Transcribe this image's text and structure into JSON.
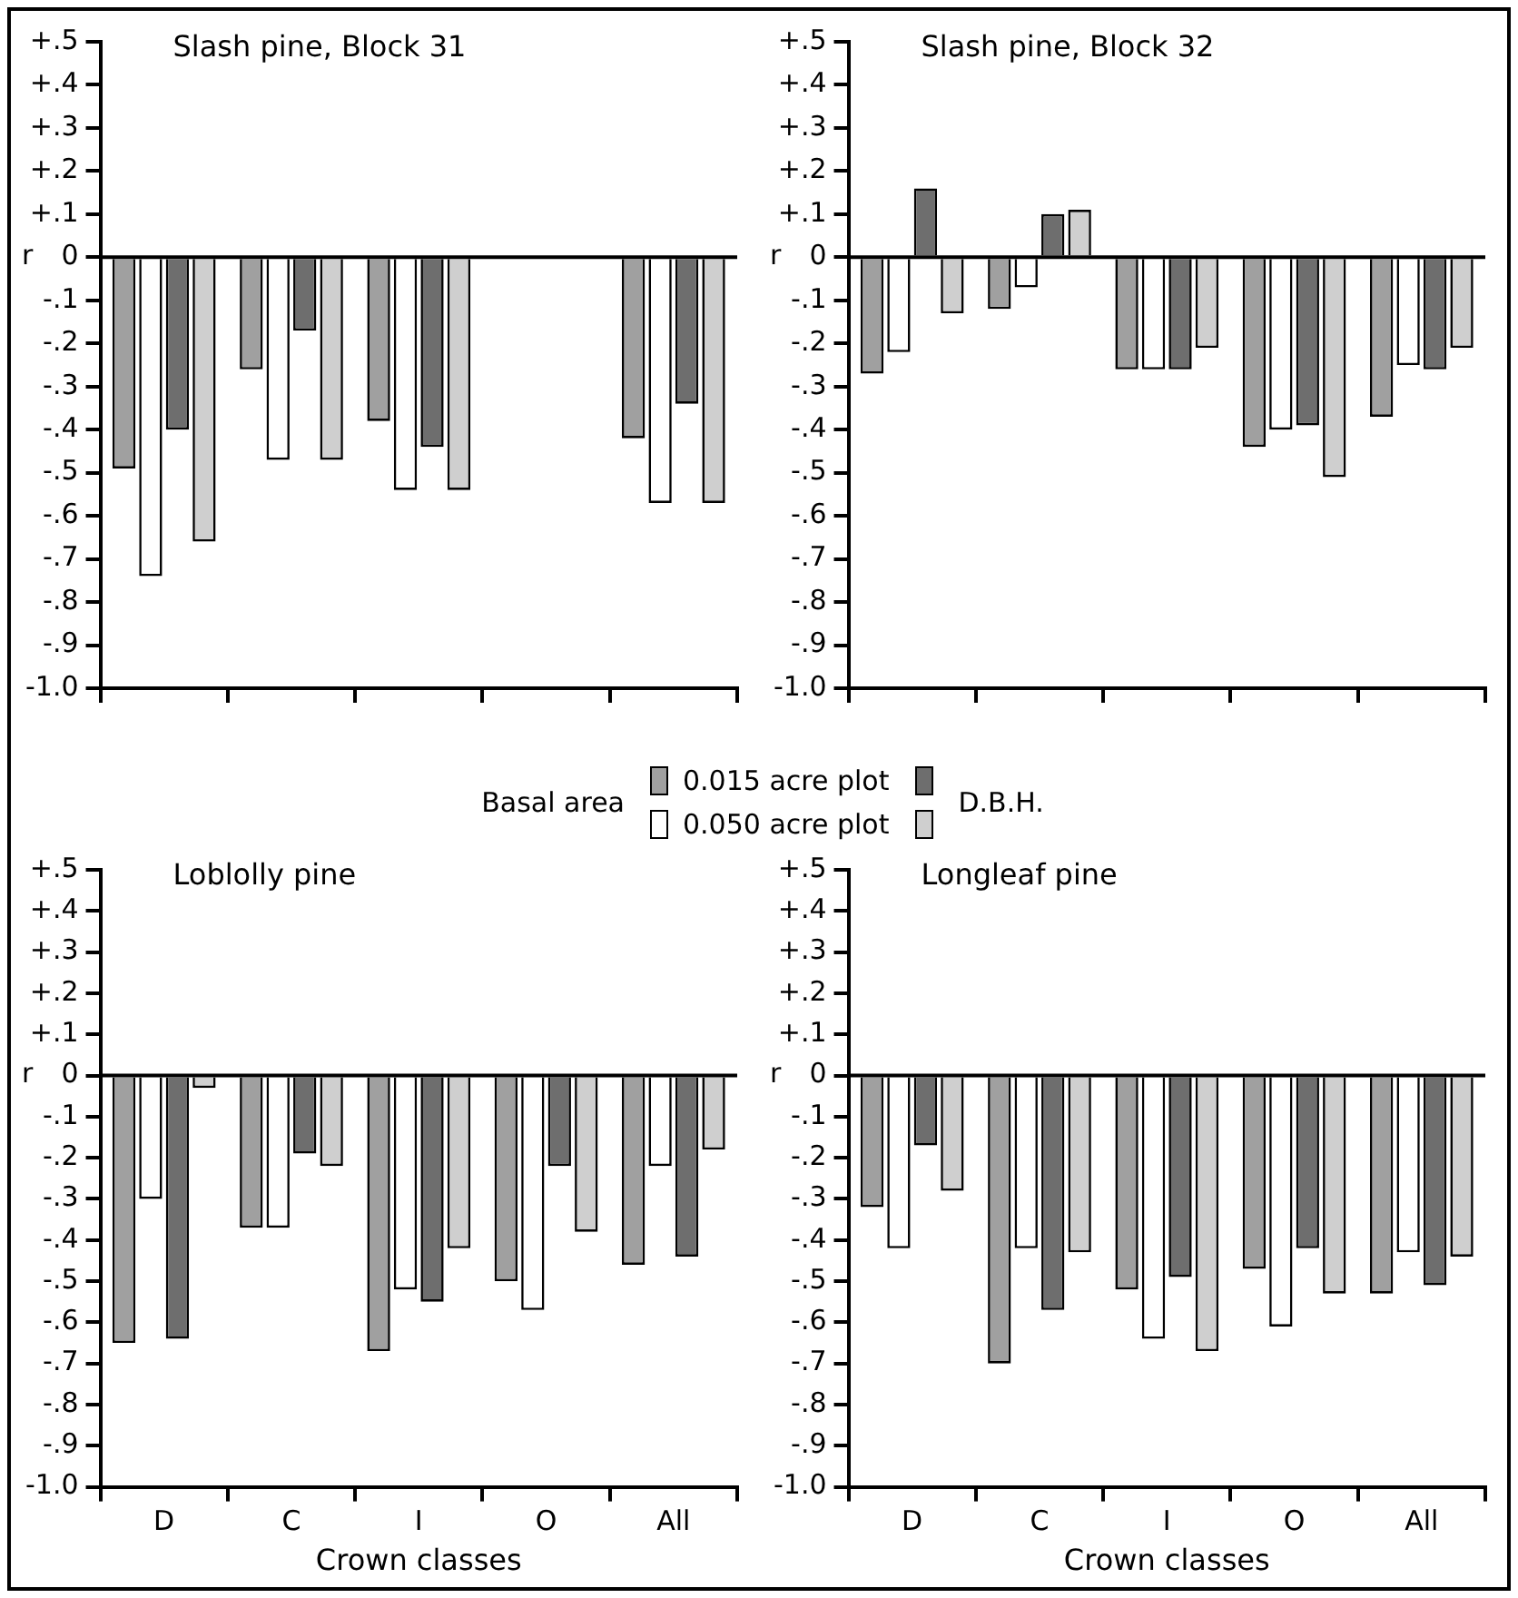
{
  "chart_data": [
    {
      "type": "bar",
      "title": "Slash pine, Block 31",
      "ylabel": "r",
      "legend_title": "Basal area",
      "annotations": [
        "D.B.H."
      ],
      "legend": "bottom",
      "tick_labels": "y",
      "categories": [
        null,
        null,
        null,
        null,
        null
      ],
      "series": [
        {
          "name": "0.015 acre plot",
          "color": "#a0a0a0",
          "values": [
            -0.49,
            -0.26,
            -0.38,
            null,
            -0.42
          ]
        },
        {
          "name": "0.050 acre plot",
          "color": "#ffffff",
          "values": [
            -0.74,
            -0.47,
            -0.54,
            null,
            -0.57
          ]
        },
        {
          "color": "#6e6e6e",
          "values": [
            -0.4,
            -0.17,
            -0.44,
            null,
            -0.34
          ]
        },
        {
          "color": "#cfcfcf",
          "values": [
            -0.66,
            -0.47,
            -0.54,
            null,
            -0.57
          ]
        }
      ],
      "ref_lines": [
        {
          "axis": "y",
          "value": 0
        }
      ],
      "ylim": [
        -1.0,
        0.5
      ],
      "yticks": [
        {
          "value": 0.5,
          "label": "+.5"
        },
        {
          "value": 0.4,
          "label": "+.4"
        },
        {
          "value": 0.3,
          "label": "+.3"
        },
        {
          "value": 0.2,
          "label": "+.2"
        },
        {
          "value": 0.1,
          "label": "+.1"
        },
        {
          "value": 0,
          "label": "0"
        },
        {
          "value": -0.1,
          "label": "-.1"
        },
        {
          "value": -0.2,
          "label": "-.2"
        },
        {
          "value": -0.3,
          "label": "-.3"
        },
        {
          "value": -0.4,
          "label": "-.4"
        },
        {
          "value": -0.5,
          "label": "-.5"
        },
        {
          "value": -0.6,
          "label": "-.6"
        },
        {
          "value": -0.7,
          "label": "-.7"
        },
        {
          "value": -0.8,
          "label": "-.8"
        },
        {
          "value": -0.9,
          "label": "-.9"
        },
        {
          "value": -1.0,
          "label": "-1.0"
        }
      ]
    },
    {
      "type": "bar",
      "title": "Slash pine, Block 32",
      "ylabel": "r",
      "tick_labels": "y",
      "categories": [
        null,
        null,
        null,
        null,
        null
      ],
      "series": [
        {
          "color": "#a0a0a0",
          "values": [
            -0.27,
            -0.12,
            -0.26,
            -0.44,
            -0.37
          ]
        },
        {
          "color": "#ffffff",
          "values": [
            -0.22,
            -0.07,
            -0.26,
            -0.4,
            -0.25
          ]
        },
        {
          "color": "#6e6e6e",
          "values": [
            0.16,
            0.1,
            -0.26,
            -0.39,
            -0.26
          ]
        },
        {
          "color": "#cfcfcf",
          "values": [
            -0.13,
            0.11,
            -0.21,
            -0.51,
            -0.21
          ]
        }
      ],
      "ref_lines": [
        {
          "axis": "y",
          "value": 0
        }
      ],
      "ylim": [
        -1.0,
        0.5
      ],
      "yticks": [
        {
          "value": 0.5,
          "label": "+.5"
        },
        {
          "value": 0.4,
          "label": "+.4"
        },
        {
          "value": 0.3,
          "label": "+.3"
        },
        {
          "value": 0.2,
          "label": "+.2"
        },
        {
          "value": 0.1,
          "label": "+.1"
        },
        {
          "value": 0,
          "label": "0"
        },
        {
          "value": -0.1,
          "label": "-.1"
        },
        {
          "value": -0.2,
          "label": "-.2"
        },
        {
          "value": -0.3,
          "label": "-.3"
        },
        {
          "value": -0.4,
          "label": "-.4"
        },
        {
          "value": -0.5,
          "label": "-.5"
        },
        {
          "value": -0.6,
          "label": "-.6"
        },
        {
          "value": -0.7,
          "label": "-.7"
        },
        {
          "value": -0.8,
          "label": "-.8"
        },
        {
          "value": -0.9,
          "label": "-.9"
        },
        {
          "value": -1.0,
          "label": "-1.0"
        }
      ]
    },
    {
      "type": "bar",
      "title": "Loblolly pine",
      "ylabel": "r",
      "xlabel": "Crown classes",
      "categories": [
        "D",
        "C",
        "I",
        "O",
        "All"
      ],
      "series": [
        {
          "color": "#a0a0a0",
          "values": [
            -0.65,
            -0.37,
            -0.67,
            -0.5,
            -0.46
          ]
        },
        {
          "color": "#ffffff",
          "values": [
            -0.3,
            -0.37,
            -0.52,
            -0.57,
            -0.22
          ]
        },
        {
          "color": "#6e6e6e",
          "values": [
            -0.64,
            -0.19,
            -0.55,
            -0.22,
            -0.44
          ]
        },
        {
          "color": "#cfcfcf",
          "values": [
            -0.03,
            -0.22,
            -0.42,
            -0.38,
            -0.18
          ]
        }
      ],
      "ref_lines": [
        {
          "axis": "y",
          "value": 0
        }
      ],
      "ylim": [
        -1.0,
        0.5
      ],
      "yticks": [
        {
          "value": 0.5,
          "label": "+.5"
        },
        {
          "value": 0.4,
          "label": "+.4"
        },
        {
          "value": 0.3,
          "label": "+.3"
        },
        {
          "value": 0.2,
          "label": "+.2"
        },
        {
          "value": 0.1,
          "label": "+.1"
        },
        {
          "value": 0,
          "label": "0"
        },
        {
          "value": -0.1,
          "label": "-.1"
        },
        {
          "value": -0.2,
          "label": "-.2"
        },
        {
          "value": -0.3,
          "label": "-.3"
        },
        {
          "value": -0.4,
          "label": "-.4"
        },
        {
          "value": -0.5,
          "label": "-.5"
        },
        {
          "value": -0.6,
          "label": "-.6"
        },
        {
          "value": -0.7,
          "label": "-.7"
        },
        {
          "value": -0.8,
          "label": "-.8"
        },
        {
          "value": -0.9,
          "label": "-.9"
        },
        {
          "value": -1.0,
          "label": "-1.0"
        }
      ]
    },
    {
      "type": "bar",
      "title": "Longleaf pine",
      "ylabel": "r",
      "xlabel": "Crown classes",
      "categories": [
        "D",
        "C",
        "I",
        "O",
        "All"
      ],
      "series": [
        {
          "color": "#a0a0a0",
          "values": [
            -0.32,
            -0.7,
            -0.52,
            -0.47,
            -0.53
          ]
        },
        {
          "color": "#ffffff",
          "values": [
            -0.42,
            -0.42,
            -0.64,
            -0.61,
            -0.43
          ]
        },
        {
          "color": "#6e6e6e",
          "values": [
            -0.17,
            -0.57,
            -0.49,
            -0.42,
            -0.51
          ]
        },
        {
          "color": "#cfcfcf",
          "values": [
            -0.28,
            -0.43,
            -0.67,
            -0.53,
            -0.44
          ]
        }
      ],
      "ref_lines": [
        {
          "axis": "y",
          "value": 0
        }
      ],
      "ylim": [
        -1.0,
        0.5
      ],
      "yticks": [
        {
          "value": 0.5,
          "label": "+.5"
        },
        {
          "value": 0.4,
          "label": "+.4"
        },
        {
          "value": 0.3,
          "label": "+.3"
        },
        {
          "value": 0.2,
          "label": "+.2"
        },
        {
          "value": 0.1,
          "label": "+.1"
        },
        {
          "value": 0,
          "label": "0"
        },
        {
          "value": -0.1,
          "label": "-.1"
        },
        {
          "value": -0.2,
          "label": "-.2"
        },
        {
          "value": -0.3,
          "label": "-.3"
        },
        {
          "value": -0.4,
          "label": "-.4"
        },
        {
          "value": -0.5,
          "label": "-.5"
        },
        {
          "value": -0.6,
          "label": "-.6"
        },
        {
          "value": -0.7,
          "label": "-.7"
        },
        {
          "value": -0.8,
          "label": "-.8"
        },
        {
          "value": -0.9,
          "label": "-.9"
        },
        {
          "value": -1.0,
          "label": "-1.0"
        }
      ]
    }
  ]
}
